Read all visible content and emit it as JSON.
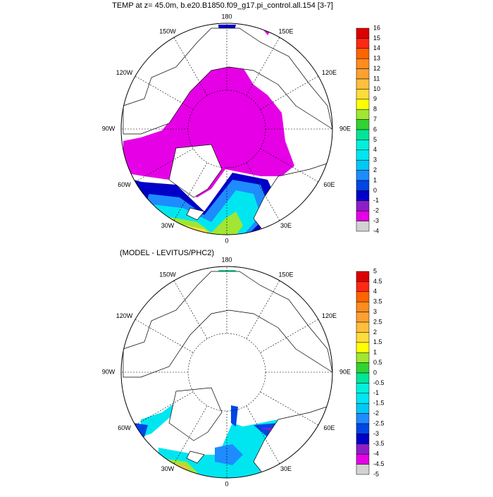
{
  "panels": [
    {
      "title": "TEMP at z=  45.0m, b.e20.B1850.f09_g17.pi_control.all.154 [3-7]",
      "lon_labels": [
        "180",
        "150W",
        "150E",
        "120W",
        "120E",
        "90W",
        "90E",
        "60W",
        "60E",
        "30W",
        "30E",
        "0"
      ],
      "colorbar": {
        "labels": [
          "16",
          "15",
          "14",
          "13",
          "12",
          "11",
          "10",
          "9",
          "8",
          "7",
          "6",
          "5",
          "4",
          "3",
          "2",
          "1",
          "0",
          "-1",
          "-2",
          "-3",
          "-4"
        ],
        "colors": [
          "#b40000",
          "#dc0000",
          "#ff2814",
          "#ff6400",
          "#ff8c1e",
          "#ffa032",
          "#ffbe3c",
          "#ffdc3c",
          "#ffff00",
          "#a0e632",
          "#32d232",
          "#00e696",
          "#00f0dc",
          "#00e6f0",
          "#00c8f5",
          "#1e8cff",
          "#0046e6",
          "#0000c8",
          "#8c1ec8",
          "#e600e6",
          "#d2d2d2",
          "#6e6e6e"
        ]
      }
    },
    {
      "title": "(MODEL - LEVITUS/PHC2)",
      "lon_labels": [
        "180",
        "150W",
        "150E",
        "120W",
        "120E",
        "90W",
        "90E",
        "60W",
        "60E",
        "30W",
        "30E",
        "0"
      ],
      "colorbar": {
        "labels": [
          "5",
          "4.5",
          "4",
          "3.5",
          "3",
          "2.5",
          "2",
          "1.5",
          "1",
          "0.5",
          "0",
          "-0.5",
          "-1",
          "-1.5",
          "-2",
          "-2.5",
          "-3",
          "-3.5",
          "-4",
          "-4.5",
          "-5"
        ],
        "colors": [
          "#b40000",
          "#dc0000",
          "#ff2814",
          "#ff6400",
          "#ff8c1e",
          "#ffa032",
          "#ffbe3c",
          "#ffdc3c",
          "#ffff00",
          "#a0e632",
          "#32d232",
          "#00e696",
          "#00f0dc",
          "#00e6f0",
          "#00c8f5",
          "#1e8cff",
          "#0046e6",
          "#0000c8",
          "#8c1ec8",
          "#e600e6",
          "#d2d2d2",
          "#6e6e6e"
        ]
      }
    }
  ]
}
